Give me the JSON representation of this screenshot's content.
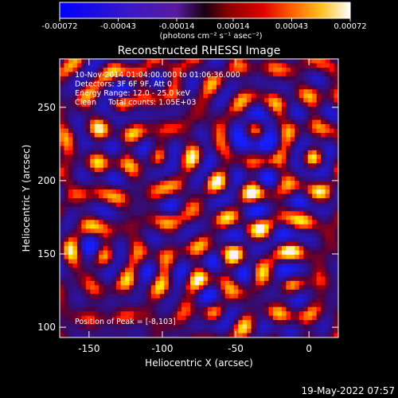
{
  "chart_data": [
    {
      "type": "colorbar",
      "colormap": "hot (black-red-yellow-white) with blue negatives",
      "range": [
        -0.00072,
        0.00072
      ],
      "tick_labels": [
        "-0.00072",
        "-0.00043",
        "-0.00014",
        "0.00014",
        "0.00043",
        "0.00072"
      ],
      "ticks": [
        -0.00072,
        -0.00043,
        -0.00014,
        0.00014,
        0.00043,
        0.00072
      ],
      "units_label": "(photons cm⁻² s⁻¹ asec⁻²)"
    },
    {
      "type": "heatmap",
      "title": "Reconstructed RHESSI Image",
      "xlabel": "Heliocentric X (arcsec)",
      "ylabel": "Heliocentric Y (arcsec)",
      "xlim": [
        -170,
        20
      ],
      "ylim": [
        93,
        283
      ],
      "xticks": [
        -150,
        -100,
        -50,
        0
      ],
      "xtick_labels": [
        "-150",
        "-100",
        "-50",
        "0"
      ],
      "yticks": [
        100,
        150,
        200,
        250
      ],
      "ytick_labels": [
        "100",
        "150",
        "200",
        "250"
      ],
      "peak": [
        -8,
        103
      ],
      "colors": {
        "background": "#000000",
        "positive_high": "#ffffff",
        "negative": "#2030ff"
      }
    }
  ],
  "annotations": {
    "time_range": "10-Nov-2014 01:04:00.000 to 01:06:36.000",
    "detectors": "Detectors: 3F 6F 9F, Att 0",
    "energy": "Energy Range: 12.0 - 25.0 keV",
    "clean": "Clean     Total counts: 1.05E+03",
    "peak": "Position of Peak = [-8,103]"
  },
  "footer": {
    "date": "19-May-2022 07:57"
  }
}
